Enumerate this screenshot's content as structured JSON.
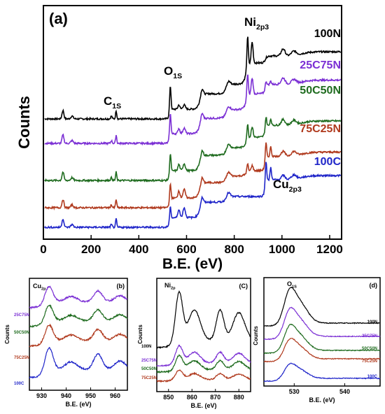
{
  "colors": {
    "100N": "#000000",
    "25C75N": "#7b2fd4",
    "50C50N": "#1e6b1e",
    "75C25N": "#b03a1e",
    "100C": "#1f25c9",
    "axis": "#000000"
  },
  "chart_data": [
    {
      "id": "a",
      "type": "line",
      "panel_label": "(a)",
      "xlabel": "B.E. (eV)",
      "ylabel": "Counts",
      "xlim": [
        0,
        1250
      ],
      "x_ticks": [
        0,
        200,
        400,
        600,
        800,
        1000,
        1200
      ],
      "y_ticks_shown": false,
      "annotations": [
        {
          "text": "C",
          "sub": "1S",
          "x": 305
        },
        {
          "text": "O",
          "sub": "1S",
          "x": 532
        },
        {
          "text": "Ni",
          "sub": "2p3",
          "x": 856
        },
        {
          "text": "Cu",
          "sub": "2p3",
          "x": 933
        }
      ],
      "series": [
        {
          "name": "100N",
          "color": "#000000",
          "y_offset": 4
        },
        {
          "name": "25C75N",
          "color": "#7b2fd4",
          "y_offset": 3
        },
        {
          "name": "50C50N",
          "color": "#1e6b1e",
          "y_offset": 2
        },
        {
          "name": "75C25N",
          "color": "#b03a1e",
          "y_offset": 1
        },
        {
          "name": "100C",
          "color": "#1f25c9",
          "y_offset": 0
        }
      ]
    },
    {
      "id": "b",
      "type": "line",
      "panel_label": "(b)",
      "xlabel": "B.E. (eV)",
      "ylabel": "Counts",
      "xlim": [
        925,
        965
      ],
      "x_ticks": [
        930,
        940,
        950,
        960
      ],
      "annotations": [
        {
          "text": "Cu",
          "sub": "2p",
          "x": 933
        }
      ],
      "series": [
        {
          "name": "25C75N",
          "color": "#7b2fd4"
        },
        {
          "name": "50C50N",
          "color": "#1e6b1e"
        },
        {
          "name": "75C25N",
          "color": "#b03a1e"
        },
        {
          "name": "100C",
          "color": "#1f25c9"
        }
      ]
    },
    {
      "id": "c",
      "type": "line",
      "panel_label": "(C)",
      "xlabel": "B.E. (eV)",
      "ylabel": "Counts",
      "xlim": [
        845,
        885
      ],
      "x_ticks": [
        850,
        860,
        870,
        880
      ],
      "annotations": [
        {
          "text": "Ni",
          "sub": "2p",
          "x": 854
        }
      ],
      "series": [
        {
          "name": "100N",
          "color": "#000000"
        },
        {
          "name": "25C75N",
          "color": "#7b2fd4"
        },
        {
          "name": "50C50N",
          "color": "#1e6b1e"
        },
        {
          "name": "75C25N",
          "color": "#b03a1e"
        }
      ]
    },
    {
      "id": "d",
      "type": "line",
      "panel_label": "(d)",
      "xlabel": "B.E. (eV)",
      "ylabel": "Counts",
      "xlim": [
        524,
        547
      ],
      "x_ticks": [
        530,
        540
      ],
      "annotations": [
        {
          "text": "O",
          "sub": "1S",
          "x": 529
        }
      ],
      "series": [
        {
          "name": "100N",
          "color": "#000000"
        },
        {
          "name": "25C75N",
          "color": "#7b2fd4"
        },
        {
          "name": "50C50N",
          "color": "#1e6b1e"
        },
        {
          "name": "75C25N",
          "color": "#b03a1e"
        },
        {
          "name": "100C",
          "color": "#1f25c9"
        }
      ]
    }
  ]
}
